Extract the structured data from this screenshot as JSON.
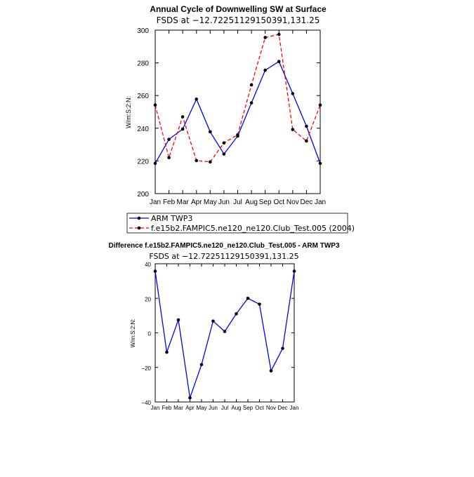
{
  "chart_data": [
    {
      "type": "line",
      "title": "Annual Cycle of Downwelling SW at Surface",
      "subtitle": "FSDS at −12.72251129150391,131.25",
      "ylabel": "W/m:S:2:N:",
      "xlabel": "",
      "categories": [
        "Jan",
        "Feb",
        "Mar",
        "Apr",
        "May",
        "Jun",
        "Jul",
        "Aug",
        "Sep",
        "Oct",
        "Nov",
        "Dec",
        "Jan"
      ],
      "ylim": [
        200,
        300
      ],
      "yticks": [
        "200",
        "220",
        "240",
        "260",
        "280",
        "300"
      ],
      "series": [
        {
          "name": "ARM TWP3",
          "color": "#0000ff",
          "dash": "solid",
          "values": [
            218.5,
            233.2,
            239.5,
            257.8,
            237.8,
            224.2,
            235.2,
            255.5,
            275.5,
            280.8,
            261.2,
            241.2,
            218.5
          ]
        },
        {
          "name": "f.e15b2.FAMPIC5.ne120_ne120.Club_Test.005 (2004)",
          "color": "#ff0000",
          "dash": "dashed",
          "values": [
            254.2,
            222.0,
            247.0,
            220.2,
            219.4,
            231.0,
            236.0,
            266.5,
            295.5,
            297.4,
            239.2,
            232.2,
            254.2
          ]
        }
      ],
      "legend_position": "bottom"
    },
    {
      "type": "line",
      "title": "Difference f.e15b2.FAMPIC5.ne120_ne120.Club_Test.005 - ARM TWP3",
      "subtitle": "FSDS at −12.72251129150391,131.25",
      "ylabel": "W/m:S:2:N:",
      "xlabel": "",
      "categories": [
        "Jan",
        "Feb",
        "Mar",
        "Apr",
        "May",
        "Jun",
        "Jul",
        "Aug",
        "Sep",
        "Oct",
        "Nov",
        "Dec",
        "Jan"
      ],
      "ylim": [
        -40,
        40
      ],
      "yticks": [
        "−40",
        "−20",
        "0",
        "20",
        "40"
      ],
      "series": [
        {
          "color": "#0000ff",
          "dash": "solid",
          "values": [
            35.7,
            -11.2,
            7.5,
            -37.6,
            -18.4,
            6.8,
            0.8,
            11.0,
            20.0,
            16.6,
            -22.0,
            -9.0,
            35.7
          ]
        }
      ]
    }
  ]
}
